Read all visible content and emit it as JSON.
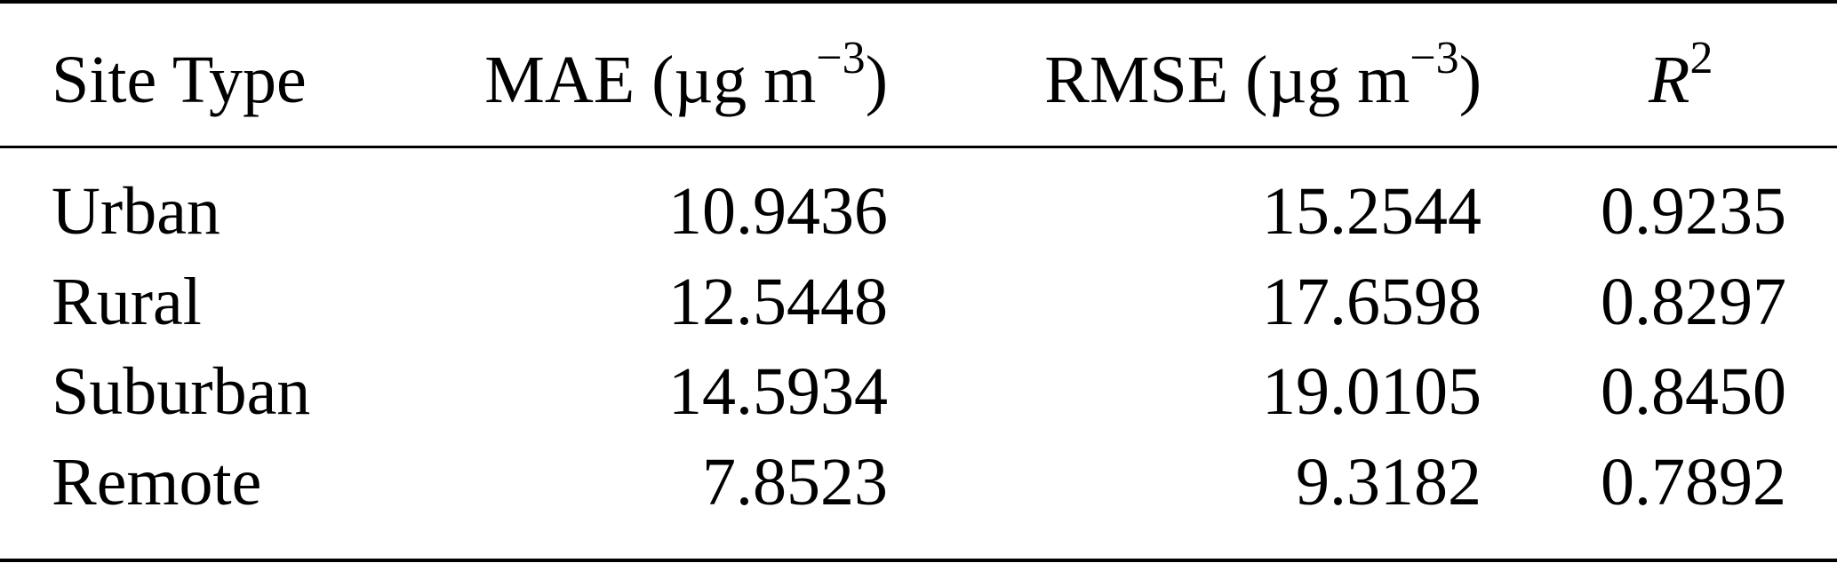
{
  "table": {
    "headers": {
      "site_type": "Site Type",
      "mae": "MAE (µg m",
      "mae_close": ")",
      "rmse": "RMSE (µg m",
      "rmse_close": ")",
      "unit_exponent": "−3",
      "r2_base": "R",
      "r2_exp": "2"
    },
    "rows": [
      {
        "site": "Urban",
        "mae": "10.9436",
        "rmse": "15.2544",
        "r2": "0.9235"
      },
      {
        "site": "Rural",
        "mae": "12.5448",
        "rmse": "17.6598",
        "r2": "0.8297"
      },
      {
        "site": "Suburban",
        "mae": "14.5934",
        "rmse": "19.0105",
        "r2": "0.8450"
      },
      {
        "site": "Remote",
        "mae": "7.8523",
        "rmse": "9.3182",
        "r2": "0.7892"
      }
    ]
  }
}
